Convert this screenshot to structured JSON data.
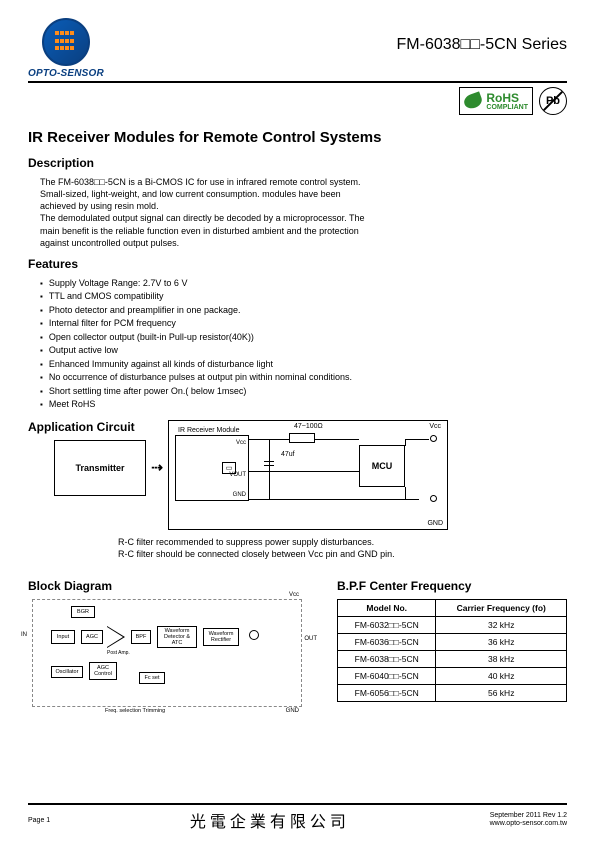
{
  "header": {
    "brand": "OPTO-SENSOR",
    "series": "FM-6038□□-5CN Series",
    "rohs": "RoHS",
    "rohs_sub": "COMPLIANT",
    "pb": "Pb"
  },
  "title": "IR Receiver Modules for Remote Control Systems",
  "sections": {
    "description": "Description",
    "features": "Features",
    "app_circuit": "Application  Circuit",
    "block_diagram": "Block Diagram",
    "bpf": "B.P.F Center Frequency"
  },
  "description_text": "The FM-6038□□-5CN is a Bi-CMOS IC for use in infrared remote control system.\nSmall-sized, light-weight, and low current consumption. modules have been achieved by using resin mold.\nThe demodulated output signal can directly be decoded by a microprocessor. The main benefit is the reliable function even in disturbed ambient and the protection against uncontrolled output pulses.",
  "features": [
    "Supply Voltage Range: 2.7V to 6 V",
    "TTL and CMOS compatibility",
    "Photo detector and preamplifier in one package.",
    "Internal filter for PCM  frequency",
    "Open collector output (built-in Pull-up resistor(40K))",
    "Output active low",
    "Enhanced Immunity against all kinds of disturbance light",
    "No occurrence of disturbance pulses at output pin within nominal conditions.",
    "Short settling time after power On.( below 1msec)",
    "Meet RoHS"
  ],
  "circuit": {
    "transmitter": "Transmitter",
    "module": "IR Receiver Module",
    "vcc": "Vcc",
    "vout": "VOUT",
    "gnd": "GND",
    "r": "47~100Ω",
    "c": "47uf",
    "mcu": "MCU",
    "top_term": "Vcc",
    "bot_term": "GND",
    "note1": "R-C filter recommended to suppress power supply disturbances.",
    "note2": "R-C filter should be connected closely between Vcc pin and GND pin."
  },
  "block_diagram": {
    "in": "IN",
    "out": "OUT",
    "vcc": "Vcc",
    "gnd": "GND",
    "bgr": "BGR",
    "input": "Input",
    "agc": "AGC",
    "post_amp": "Post Amp.",
    "bpf": "BPF",
    "wave_det": "Waveform Detector & ATC",
    "wave_rect": "Waveform Rectifier",
    "osc": "Oscillator",
    "agc_ctrl": "AGC Control",
    "fc": "Fc set",
    "freq_trim": "Freq. selection Trimming"
  },
  "bpf_table": {
    "columns": [
      "Model No.",
      "Carrier Frequency (fo)"
    ],
    "rows": [
      [
        "FM-6032□□-5CN",
        "32 kHz"
      ],
      [
        "FM-6036□□-5CN",
        "36 kHz"
      ],
      [
        "FM-6038□□-5CN",
        "38 kHz"
      ],
      [
        "FM-6040□□-5CN",
        "40 kHz"
      ],
      [
        "FM-6056□□-5CN",
        "56 kHz"
      ]
    ]
  },
  "footer": {
    "page": "Page 1",
    "company": "光電企業有限公司",
    "date": "September  2011  Rev 1.2",
    "url": "www.opto-sensor.com.tw"
  }
}
